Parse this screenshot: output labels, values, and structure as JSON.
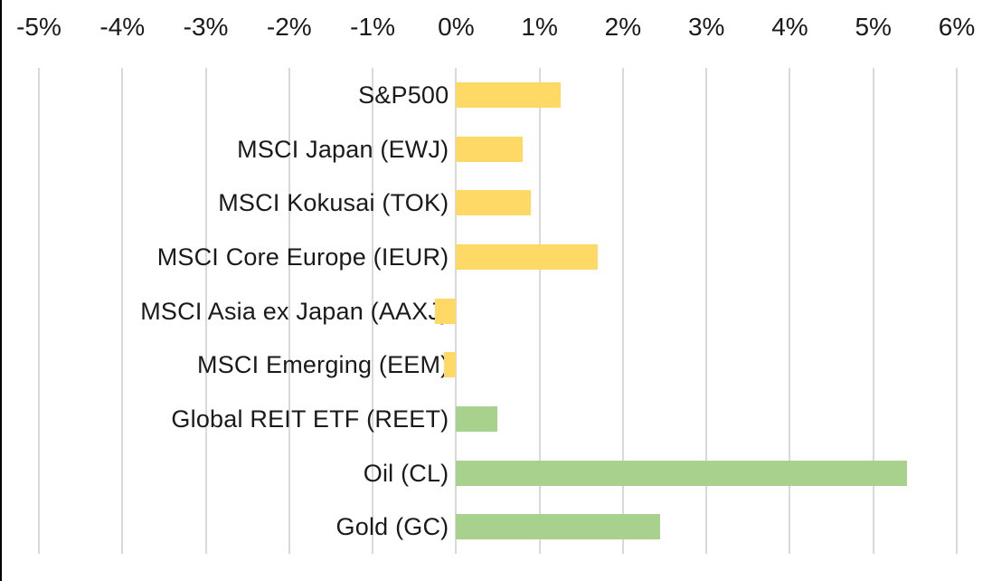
{
  "window": {
    "background_color": "#ffffff",
    "left_edge_border_color": "#000000",
    "text_color": "#1a1a1a"
  },
  "chart_data": {
    "type": "bar",
    "orientation": "horizontal",
    "title": "",
    "legend": "none",
    "grid_on": true,
    "gridline_color": "#d9d9d9",
    "categories": [
      "S&P500",
      "MSCI Japan (EWJ)",
      "MSCI Kokusai (TOK)",
      "MSCI Core Europe (IEUR)",
      "MSCI Asia ex Japan (AAXJ)",
      "MSCI Emerging (EEM)",
      "Global REIT ETF (REET)",
      "Oil (CL)",
      "Gold (GC)"
    ],
    "values": [
      1.25,
      0.8,
      0.9,
      1.7,
      -0.25,
      -0.15,
      0.5,
      5.4,
      2.45
    ],
    "unit": "%",
    "bar_colors": [
      "#FFD966",
      "#FFD966",
      "#FFD966",
      "#FFD966",
      "#FFD966",
      "#FFD966",
      "#A9D18E",
      "#A9D18E",
      "#A9D18E"
    ],
    "color_legend": {
      "equity_indices": "#FFD966",
      "reit_and_commodities": "#A9D18E"
    },
    "x_axis": {
      "position": "top",
      "min": -5,
      "max": 6,
      "tick_step": 1,
      "tick_values": [
        -5,
        -4,
        -3,
        -2,
        -1,
        0,
        1,
        2,
        3,
        4,
        5,
        6
      ],
      "tick_labels": [
        "-5%",
        "-4%",
        "-3%",
        "-2%",
        "-1%",
        "0%",
        "1%",
        "2%",
        "3%",
        "4%",
        "5%",
        "6%"
      ]
    },
    "y_axis": {
      "labels_position": "left-of-zero-line",
      "tick_labels_visible": true
    }
  }
}
